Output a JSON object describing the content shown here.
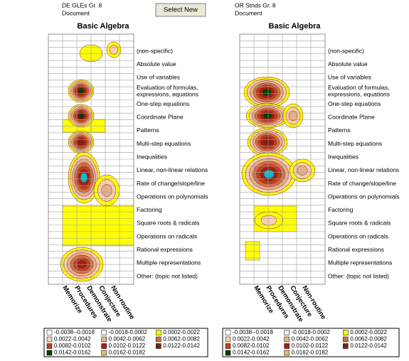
{
  "header": {
    "left_document": {
      "name": "DE GLEs Gr. 8",
      "label": "Document"
    },
    "button": "Select New",
    "right_document": {
      "name": "OR Stnds Gr. 8",
      "label": "Document"
    }
  },
  "panels": [
    {
      "title": "Basic Algebra",
      "topics": [
        "(non-specific)",
        "Absolute value",
        "Use of variables",
        [
          "Evaluation of formulas,",
          "expressions, equations"
        ],
        "One-step equations",
        "Coordinate Plane",
        "Patterns",
        "Multi-step equations",
        "Inequalities",
        "Linear, non-linear relations",
        "Rate of change/slope/line",
        "Operations on polynomials",
        "Factoring",
        "Square roots & radicals",
        "Operations on radicals",
        "Rational expressions",
        "Multiple representations",
        "Other: (topic not listed)"
      ],
      "levels": [
        "Memorize",
        "Procedures",
        "Demonstrate",
        "Conjecture",
        "Non-routine"
      ],
      "legend": [
        {
          "label": "-0.0038--0.0018",
          "color": "#ffffff"
        },
        {
          "label": "-0.0018-0.0002",
          "color": "#f2f2f2"
        },
        {
          "label": "0.0002-0.0022",
          "color": "#ffff00"
        },
        {
          "label": "0.0022-0.0042",
          "color": "#f8d0b0"
        },
        {
          "label": "0.0042-0.0062",
          "color": "#e8b088"
        },
        {
          "label": "0.0062-0.0082",
          "color": "#d07040"
        },
        {
          "label": "0.0082-0.0102",
          "color": "#c04020"
        },
        {
          "label": "0.0102-0.0122",
          "color": "#a02010"
        },
        {
          "label": "0.0122-0.0142",
          "color": "#802010"
        },
        {
          "label": "0.0142-0.0162",
          "color": "#004000"
        },
        {
          "label": "0.0162-0.0182",
          "color": "#d8c070"
        }
      ]
    },
    {
      "title": "Basic Algebra",
      "topics": [
        "(non-specific)",
        "Absolute value",
        "Use of variables",
        [
          "Evaluation of formulas,",
          "expressions, equations"
        ],
        "One-step equations",
        "Coordinate Plane",
        "Patterns",
        "Multi-step equations",
        "Inequalities",
        "Linear, non-linear relations",
        "Rate of change/slope/line",
        "Operations on polynomials",
        "Factoring",
        "Square roots & radicals",
        "Operations on radicals",
        "Rational expressions",
        "Multiple representations",
        "Other: (topic not listed)"
      ],
      "levels": [
        "Memorize",
        "Procedures",
        "Demonstrate",
        "Conjecture",
        "Non-routine"
      ],
      "legend": [
        {
          "label": "-0.0038--0.0018",
          "color": "#ffffff"
        },
        {
          "label": "-0.0018-0.0002",
          "color": "#f2f2f2"
        },
        {
          "label": "0.0002-0.0022",
          "color": "#ffff00"
        },
        {
          "label": "0.0022-0.0042",
          "color": "#f8d0b0"
        },
        {
          "label": "0.0042-0.0062",
          "color": "#e8b088"
        },
        {
          "label": "0.0062-0.0082",
          "color": "#d07040"
        },
        {
          "label": "0.0082-0.0102",
          "color": "#c04020"
        },
        {
          "label": "0.0102-0.0122",
          "color": "#a02010"
        },
        {
          "label": "0.0122-0.0142",
          "color": "#802010"
        },
        {
          "label": "0.0142-0.0162",
          "color": "#004000"
        },
        {
          "label": "0.0162-0.0182",
          "color": "#d8c070"
        }
      ]
    }
  ]
}
